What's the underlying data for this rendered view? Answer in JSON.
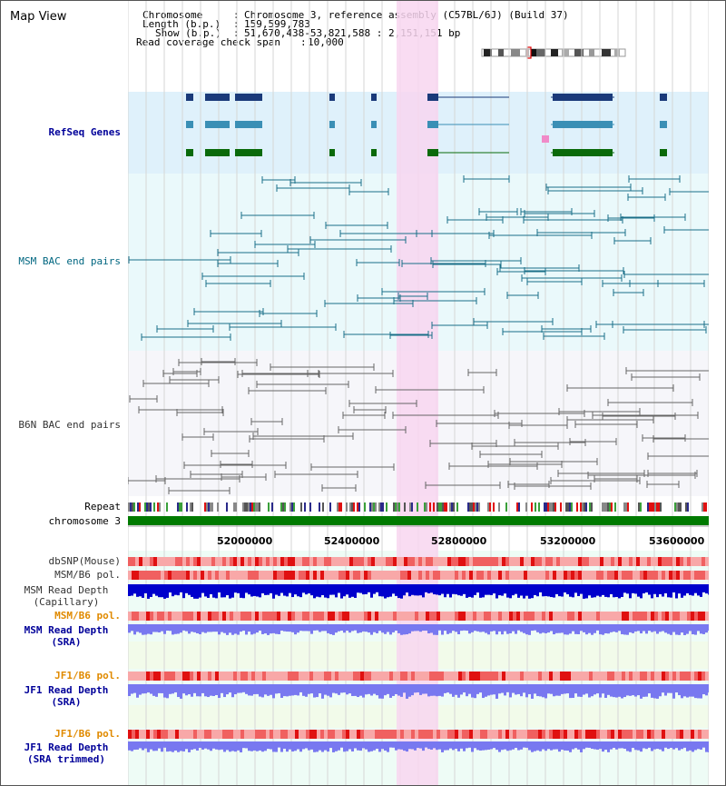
{
  "app": {
    "title": "Map View"
  },
  "header": {
    "chromosome_key": "Chromosome",
    "chromosome_val": "Chromosome 3, reference assembly (C57BL/6J) (Build 37)",
    "length_key": "Length (b.p.)",
    "length_val": "159,599,783",
    "show_key": "Show (b.p.)",
    "show_val": "51,670,438-53,821,588 : 2,151,151 bp",
    "span_key": "Read coverage check span",
    "span_val": "10,000"
  },
  "tracks": {
    "refseq": "RefSeq Genes",
    "msm_bac": "MSM BAC end pairs",
    "b6n_bac": "B6N BAC end pairs",
    "repeat": "Repeat",
    "chromosome": "chromosome 3",
    "dbsnp": "dbSNP(Mouse)",
    "msm_b6_pol_1": "MSM/B6 pol.",
    "msm_depth_cap_1": "MSM Read Depth",
    "msm_depth_cap_2": "(Capillary)",
    "msm_b6_pol_2": "MSM/B6 pol.",
    "msm_depth_sra_1": "MSM Read Depth",
    "msm_depth_sra_2": "(SRA)",
    "jf1_b6_pol_1": "JF1/B6 pol.",
    "jf1_depth_sra_1": "JF1 Read Depth",
    "jf1_depth_sra_2": "(SRA)",
    "jf1_b6_pol_2": "JF1/B6 pol.",
    "jf1_depth_trim_1": "JF1 Read Depth",
    "jf1_depth_trim_2": "(SRA trimmed)"
  },
  "axis": {
    "ticks": [
      "52000000",
      "52400000",
      "52800000",
      "53200000",
      "53600000"
    ]
  },
  "colors": {
    "refseq_bg": "#dff1fb",
    "msm_bg": "#eaf9fb",
    "b6n_bg": "#f6f6fa",
    "highlight": "#f8d6f0",
    "chromosome_bar": "#007a00",
    "msm_label": "#006680",
    "refseq_label": "#000099",
    "orange_label": "#e08a00",
    "depth_blue": "#0000cc",
    "depth_lavender": "#7878f0"
  }
}
